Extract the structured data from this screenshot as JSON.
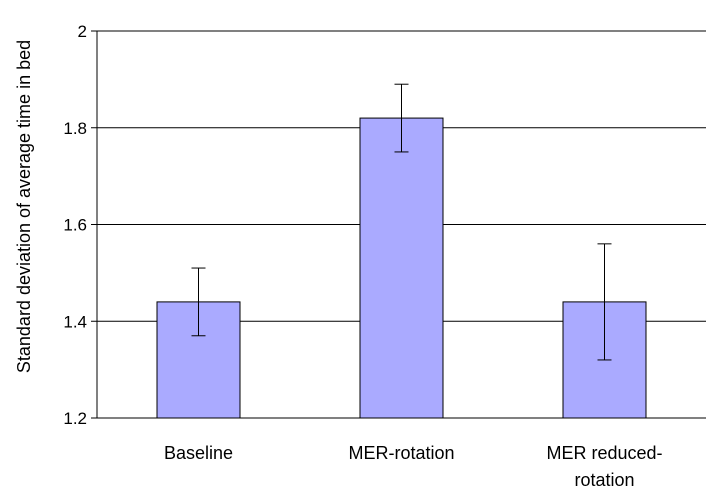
{
  "chart_data": {
    "type": "bar",
    "categories": [
      [
        "Baseline"
      ],
      [
        "MER-rotation"
      ],
      [
        "MER reduced-",
        "rotation"
      ]
    ],
    "values": [
      1.44,
      1.82,
      1.44
    ],
    "error_bars": [
      {
        "low": 1.37,
        "high": 1.51
      },
      {
        "low": 1.75,
        "high": 1.89
      },
      {
        "low": 1.32,
        "high": 1.56
      }
    ],
    "ylabel": "Standard deviation of average time in bed",
    "ylim": [
      1.2,
      2.0
    ],
    "yticks": [
      "1.2",
      "1.4",
      "1.6",
      "1.8",
      "2"
    ],
    "grid": true,
    "colors": {
      "bar_fill": "#aaaaff",
      "bar_stroke": "#000000",
      "grid": "#000000",
      "error_bar": "#000000"
    }
  }
}
